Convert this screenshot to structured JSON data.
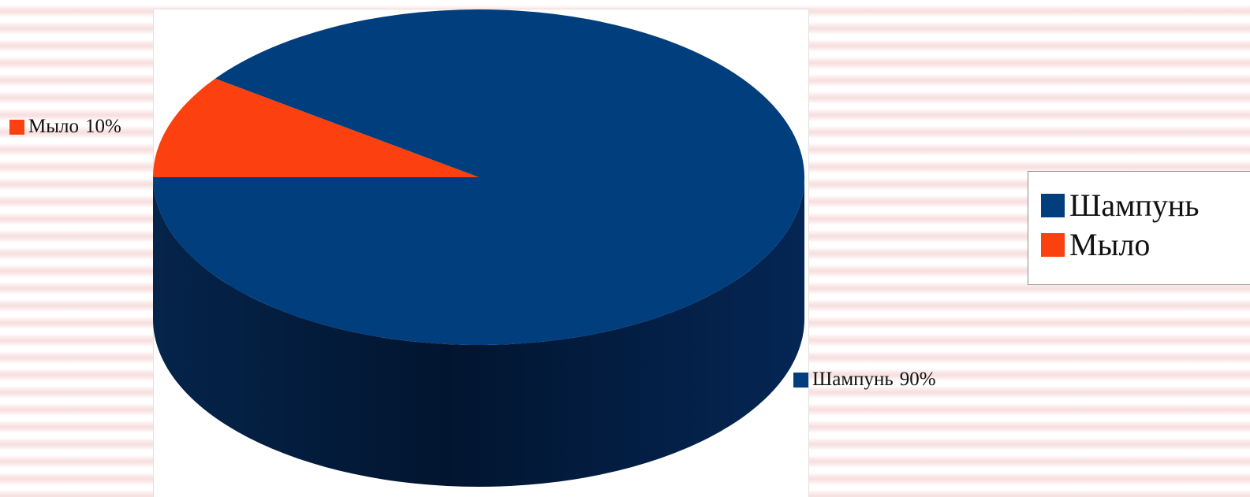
{
  "chart_data": {
    "type": "pie",
    "categories": [
      "Шампунь",
      "Мыло"
    ],
    "values": [
      90,
      10
    ],
    "value_labels": [
      "90%",
      "10%"
    ],
    "colors": [
      "#003e7e",
      "#fc4010"
    ],
    "legend_placement": "right",
    "legend": [
      "Шампунь",
      "Мыло"
    ]
  }
}
